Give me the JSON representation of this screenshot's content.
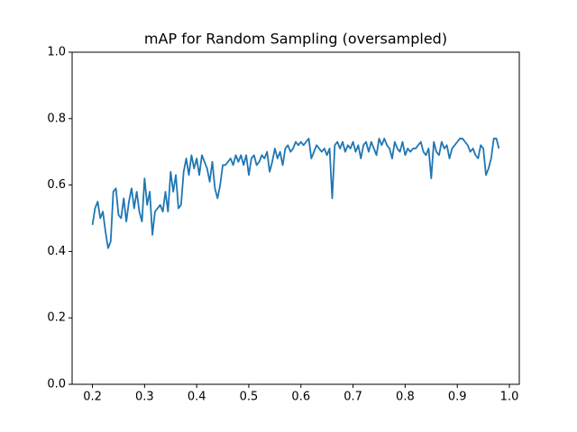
{
  "chart_data": {
    "type": "line",
    "title": "mAP for Random Sampling (oversampled)",
    "x": [
      0.2,
      0.205,
      0.21,
      0.215,
      0.22,
      0.225,
      0.23,
      0.235,
      0.24,
      0.245,
      0.25,
      0.255,
      0.26,
      0.265,
      0.27,
      0.275,
      0.28,
      0.285,
      0.29,
      0.295,
      0.3,
      0.305,
      0.31,
      0.315,
      0.32,
      0.325,
      0.33,
      0.335,
      0.34,
      0.345,
      0.35,
      0.355,
      0.36,
      0.365,
      0.37,
      0.375,
      0.38,
      0.385,
      0.39,
      0.395,
      0.4,
      0.405,
      0.41,
      0.415,
      0.42,
      0.425,
      0.43,
      0.435,
      0.44,
      0.445,
      0.45,
      0.455,
      0.46,
      0.465,
      0.47,
      0.475,
      0.48,
      0.485,
      0.49,
      0.495,
      0.5,
      0.505,
      0.51,
      0.515,
      0.52,
      0.525,
      0.53,
      0.535,
      0.54,
      0.545,
      0.55,
      0.555,
      0.56,
      0.565,
      0.57,
      0.575,
      0.58,
      0.585,
      0.59,
      0.595,
      0.6,
      0.605,
      0.61,
      0.615,
      0.62,
      0.625,
      0.63,
      0.635,
      0.64,
      0.645,
      0.65,
      0.655,
      0.66,
      0.665,
      0.67,
      0.675,
      0.68,
      0.685,
      0.69,
      0.695,
      0.7,
      0.705,
      0.71,
      0.715,
      0.72,
      0.725,
      0.73,
      0.735,
      0.74,
      0.745,
      0.75,
      0.755,
      0.76,
      0.765,
      0.77,
      0.775,
      0.78,
      0.785,
      0.79,
      0.795,
      0.8,
      0.805,
      0.81,
      0.815,
      0.82,
      0.825,
      0.83,
      0.835,
      0.84,
      0.845,
      0.85,
      0.855,
      0.86,
      0.865,
      0.87,
      0.875,
      0.88,
      0.885,
      0.89,
      0.895,
      0.9,
      0.905,
      0.91,
      0.915,
      0.92,
      0.925,
      0.93,
      0.935,
      0.94,
      0.945,
      0.95,
      0.955,
      0.96,
      0.965,
      0.97,
      0.975,
      0.98
    ],
    "y": [
      0.48,
      0.53,
      0.55,
      0.5,
      0.52,
      0.46,
      0.41,
      0.43,
      0.58,
      0.59,
      0.51,
      0.5,
      0.56,
      0.49,
      0.55,
      0.59,
      0.53,
      0.58,
      0.52,
      0.49,
      0.62,
      0.54,
      0.58,
      0.45,
      0.52,
      0.53,
      0.54,
      0.52,
      0.58,
      0.52,
      0.64,
      0.58,
      0.63,
      0.53,
      0.54,
      0.64,
      0.68,
      0.63,
      0.69,
      0.65,
      0.68,
      0.63,
      0.69,
      0.67,
      0.65,
      0.61,
      0.67,
      0.59,
      0.56,
      0.6,
      0.66,
      0.66,
      0.67,
      0.68,
      0.66,
      0.69,
      0.67,
      0.69,
      0.66,
      0.69,
      0.63,
      0.68,
      0.69,
      0.66,
      0.67,
      0.69,
      0.68,
      0.7,
      0.64,
      0.67,
      0.71,
      0.68,
      0.7,
      0.66,
      0.71,
      0.72,
      0.7,
      0.71,
      0.73,
      0.72,
      0.73,
      0.72,
      0.73,
      0.74,
      0.68,
      0.7,
      0.72,
      0.71,
      0.7,
      0.71,
      0.69,
      0.71,
      0.56,
      0.72,
      0.73,
      0.71,
      0.73,
      0.7,
      0.72,
      0.71,
      0.73,
      0.7,
      0.72,
      0.68,
      0.72,
      0.73,
      0.7,
      0.73,
      0.71,
      0.69,
      0.74,
      0.72,
      0.74,
      0.72,
      0.71,
      0.68,
      0.73,
      0.71,
      0.7,
      0.73,
      0.69,
      0.71,
      0.7,
      0.71,
      0.71,
      0.72,
      0.73,
      0.7,
      0.69,
      0.71,
      0.62,
      0.73,
      0.7,
      0.69,
      0.73,
      0.71,
      0.72,
      0.68,
      0.71,
      0.72,
      0.73,
      0.74,
      0.74,
      0.73,
      0.72,
      0.7,
      0.71,
      0.69,
      0.68,
      0.72,
      0.71,
      0.63,
      0.65,
      0.68,
      0.74,
      0.74,
      0.71
    ],
    "color": "#1f77b4",
    "xlim": [
      0.161,
      1.019
    ],
    "ylim": [
      0,
      1
    ],
    "xticks": [
      0.2,
      0.3,
      0.4,
      0.5,
      0.6,
      0.7,
      0.8,
      0.9,
      {
        "value": 1,
        "label": "1.0"
      }
    ],
    "yticks": [
      {
        "value": 0,
        "label": "0.0"
      },
      0.2,
      0.4,
      0.6,
      0.8,
      {
        "value": 1,
        "label": "1.0"
      }
    ],
    "grid": false
  }
}
